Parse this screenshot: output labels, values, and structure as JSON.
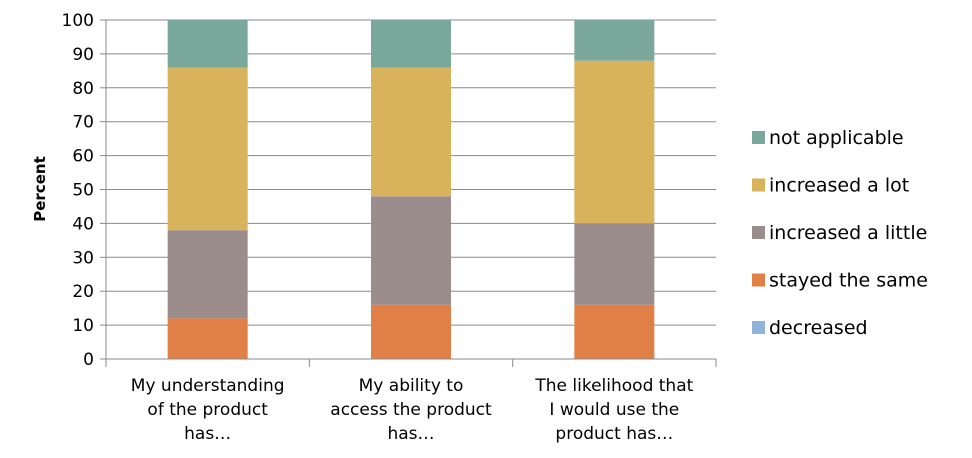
{
  "chart_data": {
    "type": "bar",
    "stacked": true,
    "title": "",
    "xlabel": "",
    "ylabel": "Percent",
    "ylim": [
      0,
      100
    ],
    "yticks": [
      0,
      10,
      20,
      30,
      40,
      50,
      60,
      70,
      80,
      90,
      100
    ],
    "grid": "horizontal",
    "legend_position": "right",
    "categories": [
      [
        "My understanding",
        "of the product",
        "has…"
      ],
      [
        "My ability to",
        "access the product",
        "has…"
      ],
      [
        "The likelihood that",
        "I would use the",
        "product has…"
      ]
    ],
    "series": [
      {
        "name": "decreased",
        "color": "#8fb3d9",
        "values": [
          0,
          0,
          0
        ]
      },
      {
        "name": "stayed the same",
        "color": "#e07f46",
        "values": [
          12,
          16,
          16
        ]
      },
      {
        "name": "increased a little",
        "color": "#9b8d8b",
        "values": [
          26,
          32,
          24
        ]
      },
      {
        "name": "increased a lot",
        "color": "#d9b25c",
        "values": [
          48,
          38,
          48
        ]
      },
      {
        "name": "not applicable",
        "color": "#7aa99b",
        "values": [
          14,
          14,
          12
        ]
      }
    ]
  }
}
